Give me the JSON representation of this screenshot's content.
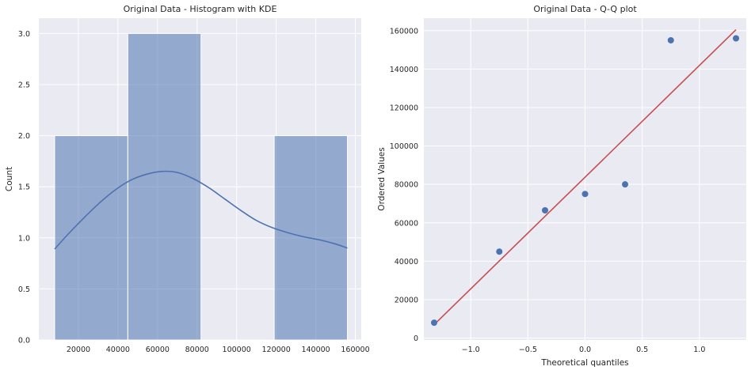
{
  "chart_data": [
    {
      "type": "bar",
      "title": "Original Data - Histogram with KDE",
      "xlabel": "",
      "ylabel": "Count",
      "xlim": [
        0,
        163000
      ],
      "ylim": [
        0,
        3.15
      ],
      "x_ticks": [
        20000,
        40000,
        60000,
        80000,
        100000,
        120000,
        140000,
        160000
      ],
      "x_tick_labels": [
        "20000",
        "40000",
        "60000",
        "80000",
        "100000",
        "120000",
        "140000",
        "160000"
      ],
      "y_ticks": [
        0,
        0.5,
        1.0,
        1.5,
        2.0,
        2.5,
        3.0
      ],
      "y_tick_labels": [
        "0.0",
        "0.5",
        "1.0",
        "1.5",
        "2.0",
        "2.5",
        "3.0"
      ],
      "grid": true,
      "bar_color": "#4c72b0",
      "bins": [
        {
          "start": 8000,
          "end": 45000,
          "count": 2
        },
        {
          "start": 45000,
          "end": 82000,
          "count": 3
        },
        {
          "start": 82000,
          "end": 119000,
          "count": 0
        },
        {
          "start": 119000,
          "end": 156000,
          "count": 2
        }
      ],
      "kde": {
        "x": [
          8000,
          15000,
          22000,
          30000,
          38000,
          46000,
          54000,
          62000,
          70000,
          78000,
          86000,
          94000,
          102000,
          110000,
          118000,
          126000,
          134000,
          142000,
          150000,
          156000
        ],
        "y": [
          0.89,
          1.04,
          1.18,
          1.33,
          1.46,
          1.56,
          1.62,
          1.65,
          1.64,
          1.58,
          1.49,
          1.38,
          1.27,
          1.17,
          1.1,
          1.05,
          1.01,
          0.98,
          0.94,
          0.9
        ]
      }
    },
    {
      "type": "scatter",
      "title": "Original Data - Q-Q plot",
      "xlabel": "Theoretical quantiles",
      "ylabel": "Ordered Values",
      "xlim": [
        -1.41,
        1.41
      ],
      "ylim": [
        -1000,
        166500
      ],
      "x_ticks": [
        -1.0,
        -0.5,
        0.0,
        0.5,
        1.0
      ],
      "x_tick_labels": [
        "−1.0",
        "−0.5",
        "0.0",
        "0.5",
        "1.0"
      ],
      "y_ticks": [
        0,
        20000,
        40000,
        60000,
        80000,
        100000,
        120000,
        140000,
        160000
      ],
      "y_tick_labels": [
        "0",
        "20000",
        "40000",
        "60000",
        "80000",
        "100000",
        "120000",
        "140000",
        "160000"
      ],
      "grid": true,
      "point_color": "#4c72b0",
      "line_color": "#c44e52",
      "points": {
        "x": [
          -1.32,
          -0.75,
          -0.35,
          0.0,
          0.35,
          0.75,
          1.32
        ],
        "y": [
          8000,
          45000,
          66500,
          75000,
          80000,
          155000,
          156000
        ]
      },
      "fit_line": {
        "x": [
          -1.32,
          1.32
        ],
        "y": [
          7000,
          160500
        ]
      }
    }
  ]
}
